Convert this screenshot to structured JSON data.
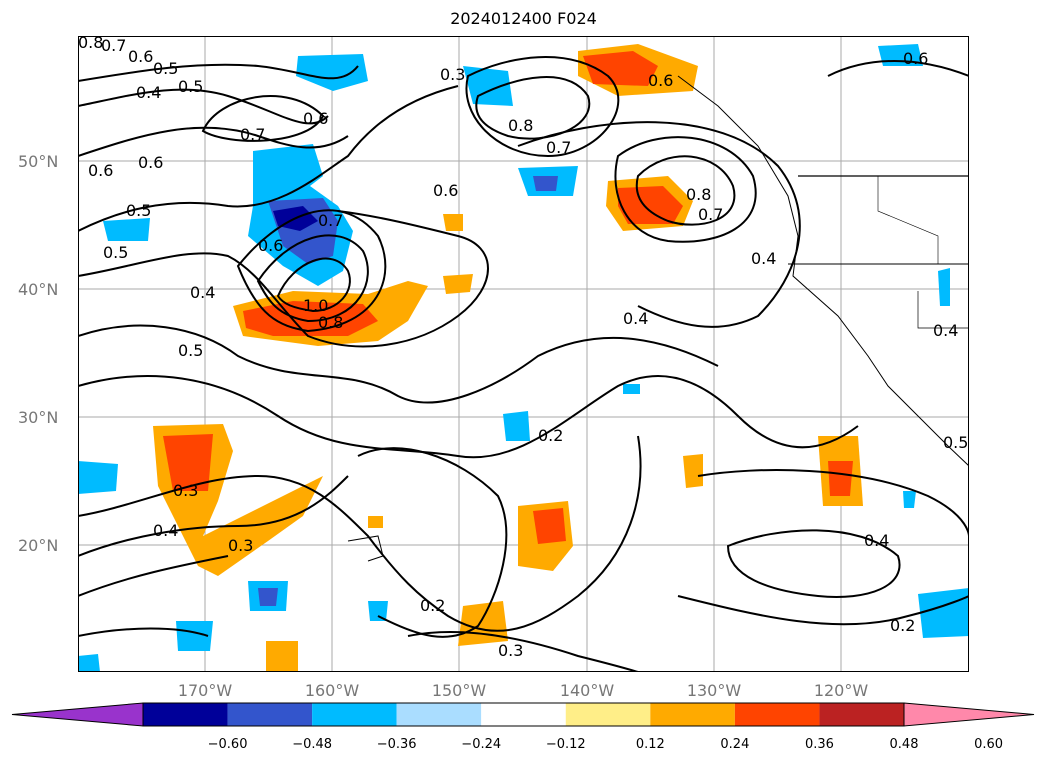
{
  "title": "2024012400 F024",
  "lat_labels": [
    {
      "text": "50°N",
      "lat": 50
    },
    {
      "text": "40°N",
      "lat": 40
    },
    {
      "text": "30°N",
      "lat": 30
    },
    {
      "text": "20°N",
      "lat": 20
    }
  ],
  "lon_labels": [
    {
      "text": "170°W",
      "lon": -170
    },
    {
      "text": "160°W",
      "lon": -160
    },
    {
      "text": "150°W",
      "lon": -150
    },
    {
      "text": "140°W",
      "lon": -140
    },
    {
      "text": "130°W",
      "lon": -130
    },
    {
      "text": "120°W",
      "lon": -120
    }
  ],
  "map_extent": {
    "lon_min": -180,
    "lon_max": -110,
    "lat_min": 10,
    "lat_max": 60
  },
  "colorbar": {
    "colors": [
      "#9933cc",
      "#000099",
      "#3355cc",
      "#00bbff",
      "#aaddff",
      "#ffffff",
      "#ffee88",
      "#ffaa00",
      "#ff4400",
      "#bb2222",
      "#ff88aa"
    ],
    "ticks": [
      "−0.60",
      "−0.48",
      "−0.36",
      "−0.24",
      "−0.12",
      "0.12",
      "0.24",
      "0.36",
      "0.48",
      "0.60"
    ]
  },
  "contour_labels": [
    "0.8",
    "0.7",
    "0.6",
    "0.5",
    "0.4",
    "0.5",
    "0.6",
    "0.6",
    "0.5",
    "0.7",
    "0.6",
    "0.5",
    "0.7",
    "0.6",
    "0.4",
    "0.5",
    "1.0",
    "0.8",
    "0.6",
    "0.3",
    "0.7",
    "0.8",
    "0.8",
    "0.7",
    "0.6",
    "0.4",
    "0.4",
    "0.4",
    "0.2",
    "0.3",
    "0.4",
    "0.3",
    "0.2",
    "0.3",
    "0.4",
    "0.2",
    "0.5",
    "0.6"
  ],
  "shaded_features": [
    {
      "name": "anomaly-north-pacific-blue",
      "lon": -163.5,
      "lat": 46,
      "value": -0.48
    },
    {
      "name": "anomaly-north-pacific-red",
      "lon": -162,
      "lat": 38.5,
      "value": 0.48
    },
    {
      "name": "anomaly-gulf-alaska-red",
      "lon": -133,
      "lat": 46.5,
      "value": 0.4
    },
    {
      "name": "anomaly-alaska-red",
      "lon": -135,
      "lat": 57,
      "value": 0.4
    },
    {
      "name": "anomaly-west-pacific-red",
      "lon": -170,
      "lat": 25,
      "value": 0.4
    },
    {
      "name": "anomaly-subtropical-red",
      "lon": -143,
      "lat": 21,
      "value": 0.4
    },
    {
      "name": "anomaly-baja-red",
      "lon": -120,
      "lat": 24,
      "value": 0.4
    }
  ]
}
